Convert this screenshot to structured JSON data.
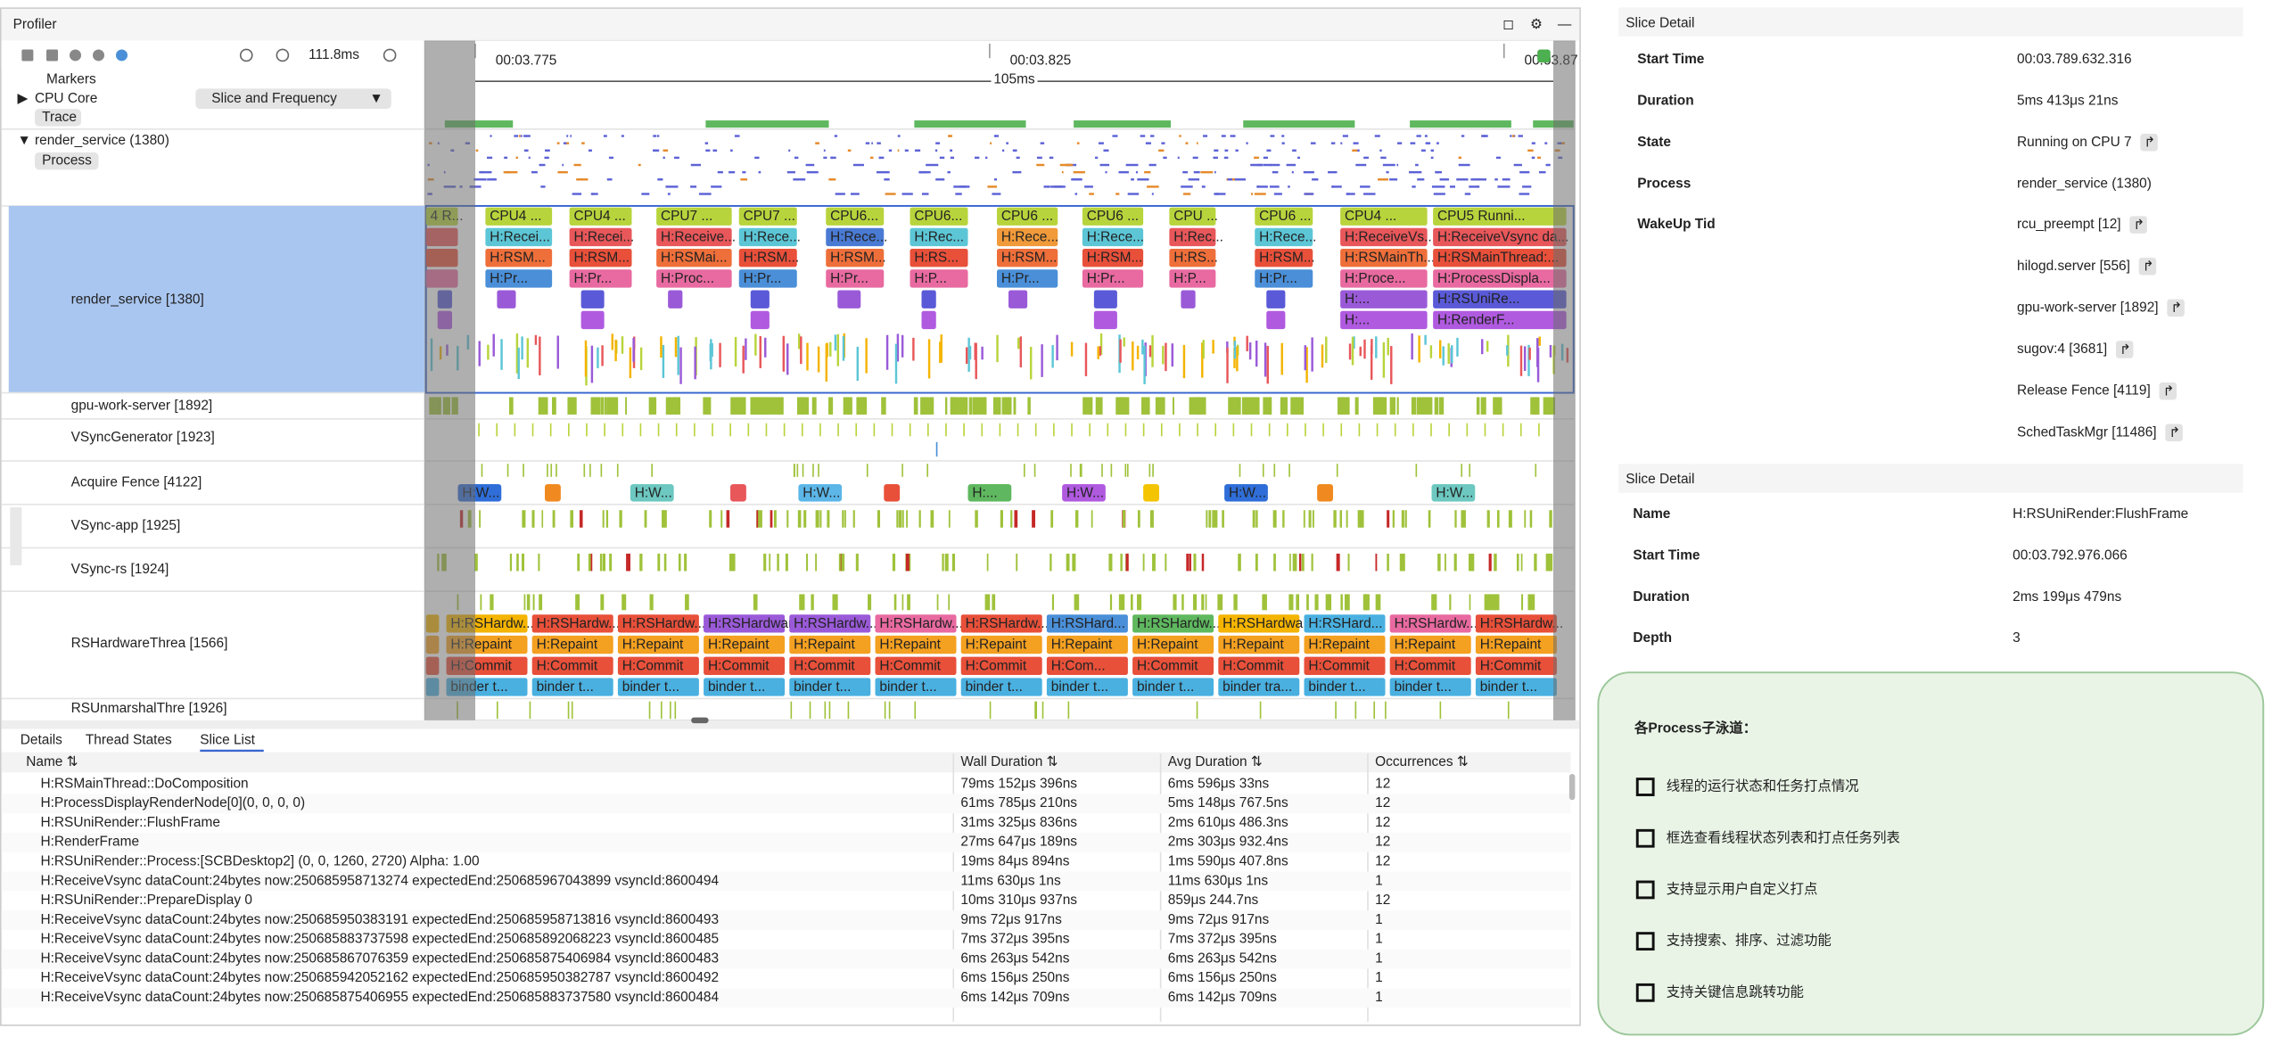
{
  "profiler": {
    "title": "Profiler",
    "zoom": "111.8ms",
    "ruler": [
      "00:03.775",
      "00:03.825",
      "00:03.87"
    ],
    "span": "105ms",
    "markers": "Markers",
    "cpu_core": "CPU Core",
    "cpu_mode": "Slice and Frequency",
    "trace": "Trace",
    "process": "render_service (1380)",
    "process_tag": "Process",
    "threads": [
      "render_service [1380]",
      "gpu-work-server [1892]",
      "VSyncGenerator [1923]",
      "Acquire Fence [4122]",
      "VSync-app [1925]",
      "VSync-rs [1924]",
      "RSHardwareThrea [1566]",
      "RSUnmarshalThre [1926]"
    ],
    "render_slices": [
      [
        "4 R...",
        "CPU4 ...",
        "CPU4 ...",
        "CPU7 ...",
        "CPU7 ...",
        "CPU6...",
        "CPU6...",
        "CPU6 ...",
        "CPU6 ...",
        "CPU ...",
        "CPU6 ...",
        "CPU4 ...",
        "CPU5 Runni..."
      ],
      [
        null,
        "H:Recei...",
        "H:Recei...",
        "H:Receive...",
        "H:Rece...",
        "H:Rece...",
        "H:Rec...",
        "H:Rece...",
        "H:Rece...",
        "H:Rec...",
        "H:Rece...",
        "H:ReceiveVs...",
        "H:ReceiveVsync da..."
      ],
      [
        null,
        "H:RSM...",
        "H:RSM...",
        "H:RSMai...",
        "H:RSM...",
        "H:RSM...",
        "H:RS...",
        "H:RSM...",
        "H:RSM...",
        "H:RS...",
        "H:RSM...",
        "H:RSMainTh...",
        "H:RSMainThread:..."
      ],
      [
        null,
        "H:Pr...",
        "H:Pr...",
        "H:Proc...",
        "H:Pr...",
        "H:Pr...",
        "H:P...",
        "H:Pr...",
        "H:Pr...",
        "H:P...",
        "H:Pr...",
        "H:Proce...",
        "H:ProcessDispla..."
      ],
      [
        null,
        null,
        null,
        null,
        null,
        null,
        null,
        null,
        null,
        null,
        null,
        "H:...",
        "H:RSUniRe..."
      ],
      [
        null,
        null,
        null,
        null,
        null,
        null,
        null,
        null,
        null,
        null,
        null,
        "H:...",
        "H:RenderF..."
      ]
    ],
    "fence_slices": [
      "H:W...",
      null,
      "H:W...",
      null,
      "H:W...",
      null,
      "H:...",
      "H:W...",
      null,
      "H:W...",
      null,
      "H:W..."
    ],
    "hw_slices": [
      [
        "H:RSHardw...",
        "H:RSHardw...",
        "H:RSHardw...",
        "H:RSHardware...",
        "H:RSHardw...",
        "H:RSHardw...",
        "H:RSHardw...",
        "H:RSHard...",
        "H:RSHardw...",
        "H:RSHardwa...",
        "H:RSHard...",
        "H:RSHardw...",
        "H:RSHardw..."
      ],
      [
        "H:Repaint",
        "H:Repaint",
        "H:Repaint",
        "H:Repaint",
        "H:Repaint",
        "H:Repaint",
        "H:Repaint",
        "H:Repaint",
        "H:Repaint",
        "H:Repaint",
        "H:Repaint",
        "H:Repaint",
        "H:Repaint"
      ],
      [
        "H:Commit",
        "H:Commit",
        "H:Commit",
        "H:Commit",
        "H:Commit",
        "H:Commit",
        "H:Commit",
        "H:Com...",
        "H:Commit",
        "H:Commit",
        "H:Commit",
        "H:Commit",
        "H:Commit"
      ],
      [
        "binder t...",
        "binder t...",
        "binder t...",
        "binder t...",
        "binder t...",
        "binder t...",
        "binder t...",
        "binder t...",
        "binder t...",
        "binder tra...",
        "binder t...",
        "binder t...",
        "binder t..."
      ]
    ]
  },
  "tabs": [
    "Details",
    "Thread States",
    "Slice List"
  ],
  "table": {
    "headers": [
      "Name ⇅",
      "Wall Duration ⇅",
      "Avg Duration ⇅",
      "Occurrences ⇅"
    ],
    "rows": [
      [
        "H:RSMainThread::DoComposition",
        "79ms 152μs 396ns",
        "6ms 596μs 33ns",
        "12"
      ],
      [
        "H:ProcessDisplayRenderNode[0](0, 0, 0, 0)",
        "61ms 785μs 210ns",
        "5ms 148μs 767.5ns",
        "12"
      ],
      [
        "H:RSUniRender::FlushFrame",
        "31ms 325μs 836ns",
        "2ms 610μs 486.3ns",
        "12"
      ],
      [
        "H:RenderFrame",
        "27ms 647μs 189ns",
        "2ms 303μs 932.4ns",
        "12"
      ],
      [
        "H:RSUniRender::Process:[SCBDesktop2] (0, 0, 1260, 2720) Alpha: 1.00",
        "19ms 84μs 894ns",
        "1ms 590μs 407.8ns",
        "12"
      ],
      [
        "H:ReceiveVsync dataCount:24bytes now:250685958713274 expectedEnd:250685967043899 vsyncId:8600494",
        "11ms 630μs 1ns",
        "11ms 630μs 1ns",
        "1"
      ],
      [
        "H:RSUniRender::PrepareDisplay 0",
        "10ms 310μs 937ns",
        "859μs 244.7ns",
        "12"
      ],
      [
        "H:ReceiveVsync dataCount:24bytes now:250685950383191 expectedEnd:250685958713816 vsyncId:8600493",
        "9ms 72μs 917ns",
        "9ms 72μs 917ns",
        "1"
      ],
      [
        "H:ReceiveVsync dataCount:24bytes now:250685883737598 expectedEnd:250685892068223 vsyncId:8600485",
        "7ms 372μs 395ns",
        "7ms 372μs 395ns",
        "1"
      ],
      [
        "H:ReceiveVsync dataCount:24bytes now:250685867076359 expectedEnd:250685875406984 vsyncId:8600483",
        "6ms 263μs 542ns",
        "6ms 263μs 542ns",
        "1"
      ],
      [
        "H:ReceiveVsync dataCount:24bytes now:250685942052162 expectedEnd:250685950382787 vsyncId:8600492",
        "6ms 156μs 250ns",
        "6ms 156μs 250ns",
        "1"
      ],
      [
        "H:ReceiveVsync dataCount:24bytes now:250685875406955 expectedEnd:250685883737580 vsyncId:8600484",
        "6ms 142μs 709ns",
        "6ms 142μs 709ns",
        "1"
      ]
    ]
  },
  "detail1": {
    "title": "Slice Detail",
    "rows": [
      [
        "Start Time",
        "00:03.789.632.316"
      ],
      [
        "Duration",
        "5ms 413μs 21ns"
      ],
      [
        "State",
        "Running on CPU 7"
      ],
      [
        "Process",
        "render_service (1380)"
      ]
    ],
    "wakeup_label": "WakeUp Tid",
    "wakeup": [
      "rcu_preempt [12]",
      "hilogd.server [556]",
      "gpu-work-server [1892]",
      "sugov:4 [3681]",
      "Release Fence [4119]",
      "SchedTaskMgr [11486]"
    ]
  },
  "detail2": {
    "title": "Slice Detail",
    "rows": [
      [
        "Name",
        "H:RSUniRender:FlushFrame"
      ],
      [
        "Start Time",
        "00:03.792.976.066"
      ],
      [
        "Duration",
        "2ms 199μs 479ns"
      ],
      [
        "Depth",
        "3"
      ]
    ]
  },
  "note": {
    "title": "各Process子泳道：",
    "bullets": [
      "线程的运行状态和任务打点情况",
      "框选查看线程状态列表和打点任务列表",
      "支持显示用户自定义打点",
      "支持搜索、排序、过滤功能",
      "支持关键信息跳转功能"
    ]
  }
}
